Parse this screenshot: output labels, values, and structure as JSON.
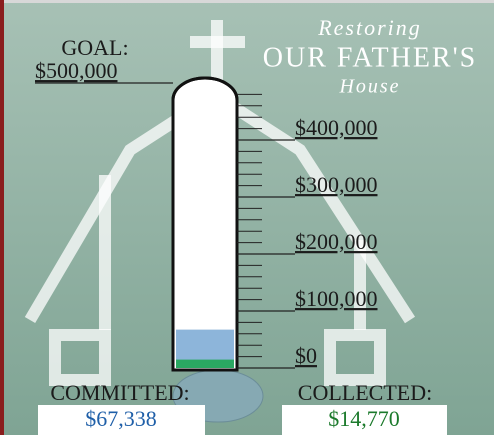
{
  "chart_data": {
    "type": "thermometer",
    "title": {
      "line1": "Restoring",
      "line2": "OUR FATHER'S",
      "line3": "House"
    },
    "goal_label": "GOAL:",
    "ylim": [
      0,
      500000
    ],
    "yticks": [
      {
        "value": 0,
        "label": "$0"
      },
      {
        "value": 100000,
        "label": "$100,000"
      },
      {
        "value": 200000,
        "label": "$200,000"
      },
      {
        "value": 300000,
        "label": "$300,000"
      },
      {
        "value": 400000,
        "label": "$400,000"
      },
      {
        "value": 500000,
        "label": "$500,000"
      }
    ],
    "minor_yticks": [
      20000,
      40000,
      60000,
      80000,
      120000,
      140000,
      160000,
      180000,
      220000,
      240000,
      260000,
      280000,
      320000,
      340000,
      360000,
      380000,
      420000,
      440000,
      460000,
      480000
    ],
    "series": [
      {
        "name": "COMMITTED:",
        "color": "#8db5da",
        "text_color": "#1f5fa8",
        "values": [
          67338
        ],
        "value_labels": [
          "$67,338"
        ]
      },
      {
        "name": "COLLECTED:",
        "color": "#2aa862",
        "text_color": "#1c7a2c",
        "values": [
          14770
        ],
        "value_labels": [
          "$14,770"
        ]
      }
    ]
  }
}
